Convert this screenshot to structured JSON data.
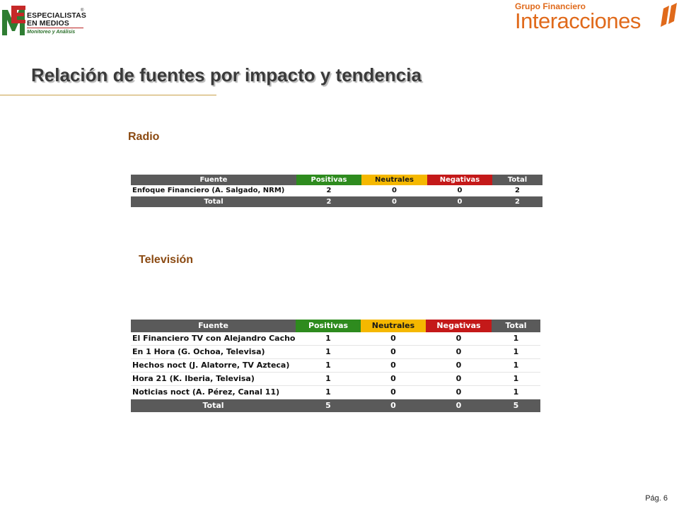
{
  "header": {
    "logo_left": {
      "line1": "ESPECIALISTAS",
      "line2": "EN MEDIOS",
      "tagline": "Monitoreo y Análisis",
      "registered": "®"
    },
    "logo_right": {
      "line1": "Grupo Financiero",
      "line2": "Interacciones"
    }
  },
  "title": "Relación de fuentes por impacto y tendencia",
  "columns": {
    "fuente": "Fuente",
    "positivas": "Positivas",
    "neutrales": "Neutrales",
    "negativas": "Negativas",
    "total": "Total"
  },
  "radio": {
    "label": "Radio",
    "rows": [
      {
        "fuente": "Enfoque Financiero (A. Salgado, NRM)",
        "positivas": "2",
        "neutrales": "0",
        "negativas": "0",
        "total": "2"
      }
    ],
    "totals": {
      "label": "Total",
      "positivas": "2",
      "neutrales": "0",
      "negativas": "0",
      "total": "2"
    }
  },
  "tv": {
    "label": "Televisión",
    "rows": [
      {
        "fuente": "El Financiero TV con Alejandro Cacho",
        "positivas": "1",
        "neutrales": "0",
        "negativas": "0",
        "total": "1"
      },
      {
        "fuente": "En 1 Hora (G. Ochoa, Televisa)",
        "positivas": "1",
        "neutrales": "0",
        "negativas": "0",
        "total": "1"
      },
      {
        "fuente": "Hechos noct (J. Alatorre, TV Azteca)",
        "positivas": "1",
        "neutrales": "0",
        "negativas": "0",
        "total": "1"
      },
      {
        "fuente": "Hora 21 (K. Iberia, Televisa)",
        "positivas": "1",
        "neutrales": "0",
        "negativas": "0",
        "total": "1"
      },
      {
        "fuente": "Noticias noct (A. Pérez, Canal 11)",
        "positivas": "1",
        "neutrales": "0",
        "negativas": "0",
        "total": "1"
      }
    ],
    "totals": {
      "label": "Total",
      "positivas": "5",
      "neutrales": "0",
      "negativas": "0",
      "total": "5"
    }
  },
  "colors": {
    "positivas": "#2e8b1e",
    "neutrales": "#f5b800",
    "negativas": "#c41919",
    "header_gray": "#5a5a5a",
    "section_label": "#8b4a12",
    "brand_orange": "#e06a1b"
  },
  "footer": {
    "page": "Pág. 6"
  }
}
